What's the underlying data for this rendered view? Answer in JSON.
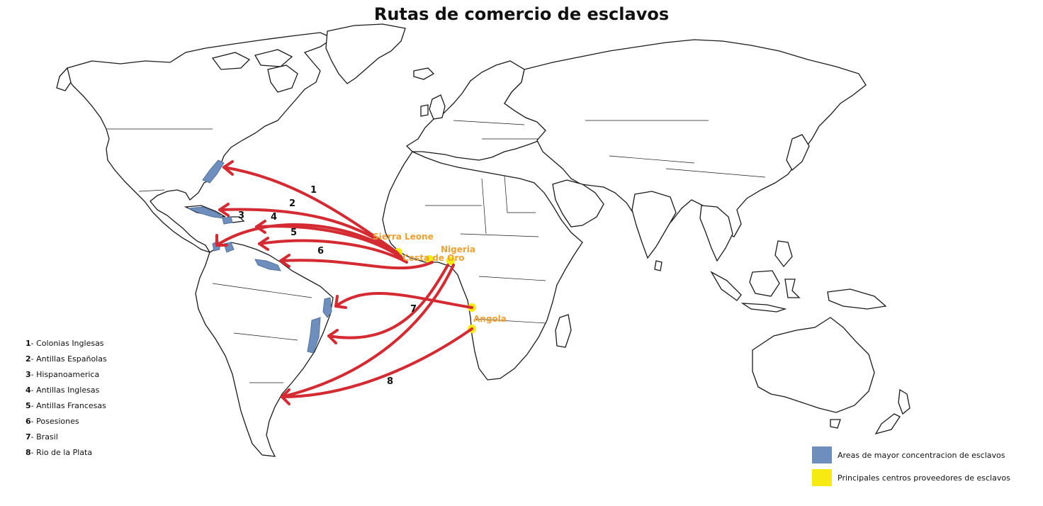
{
  "title": "Rutas de comercio de esclavos",
  "routes": [
    {
      "number": "1",
      "label": "Colonias Inglesas"
    },
    {
      "number": "2",
      "label": "Antillas Españolas"
    },
    {
      "number": "3",
      "label": "Hispanoamerica"
    },
    {
      "number": "4",
      "label": "Antillas Inglesas"
    },
    {
      "number": "5",
      "label": "Antillas Francesas"
    },
    {
      "number": "6",
      "label": "Posesiones"
    },
    {
      "number": "7",
      "label": "Brasil"
    },
    {
      "number": "8",
      "label": "Rio de la Plata"
    }
  ],
  "route_separator": "- ",
  "places": {
    "sierra_leone": "Sierra Leone",
    "costa_de_oro": "Costa de Oro",
    "nigeria": "Nigeria",
    "angola": "Angola"
  },
  "key": {
    "concentration": {
      "label": "Areas de mayor concentracion de esclavos",
      "color": "#6e8fbd"
    },
    "sources": {
      "label": "Principales centros proveedores de esclavos",
      "color": "#f6ea12"
    }
  },
  "colors": {
    "route": "#d42a32",
    "place_label": "#f0a030"
  }
}
